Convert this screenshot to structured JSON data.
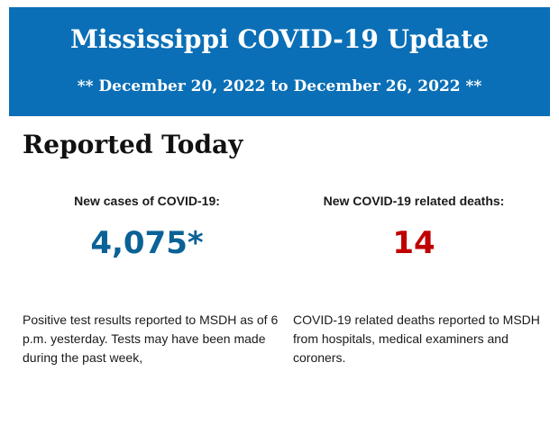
{
  "banner": {
    "title": "Mississippi COVID-19 Update",
    "subtitle": "** December 20, 2022 to December 26, 2022 **"
  },
  "section": {
    "heading": "Reported Today"
  },
  "cases": {
    "label": "New cases of COVID-19:",
    "value": "4,075*",
    "description": "Positive test results reported to MSDH as of 6 p.m. yesterday. Tests may have been made during the past week,"
  },
  "deaths": {
    "label": "New COVID-19 related deaths:",
    "value": "14",
    "description": "COVID-19 related deaths reported to MSDH from hospitals, medical examiners and coroners."
  },
  "colors": {
    "banner": "#0a6fb6",
    "cases_value": "#0a6296",
    "deaths_value": "#c00000"
  }
}
